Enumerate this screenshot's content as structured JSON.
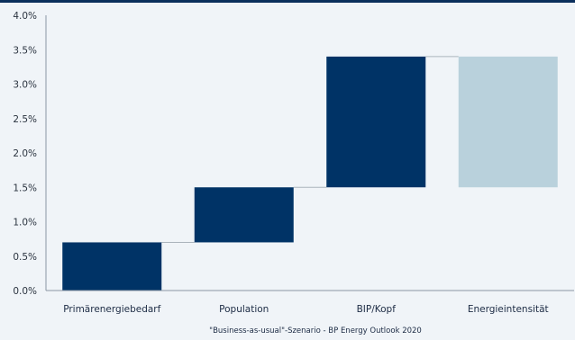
{
  "chart_data": {
    "type": "bar",
    "subtype": "waterfall",
    "categories": [
      "Primärenergiebedarf",
      "Population",
      "BIP/Kopf",
      "Energieintensität"
    ],
    "bars": [
      {
        "category": "Primärenergiebedarf",
        "start": 0.0,
        "end": 0.7,
        "color": "#003366"
      },
      {
        "category": "Population",
        "start": 0.7,
        "end": 1.5,
        "color": "#003366"
      },
      {
        "category": "BIP/Kopf",
        "start": 1.5,
        "end": 3.4,
        "color": "#003366"
      },
      {
        "category": "Energieintensität",
        "start": 1.5,
        "end": 3.4,
        "color": "#b9d1dc"
      }
    ],
    "connectors": [
      0.7,
      1.5,
      3.4
    ],
    "ylim": [
      0,
      4.0
    ],
    "yticks": [
      "0.0%",
      "0.5%",
      "1.0%",
      "1.5%",
      "2.0%",
      "2.5%",
      "3.0%",
      "3.5%",
      "4.0%"
    ],
    "caption": "\"Business-as-usual\"-Szenario - BP Energy Outlook 2020",
    "grid": false
  }
}
